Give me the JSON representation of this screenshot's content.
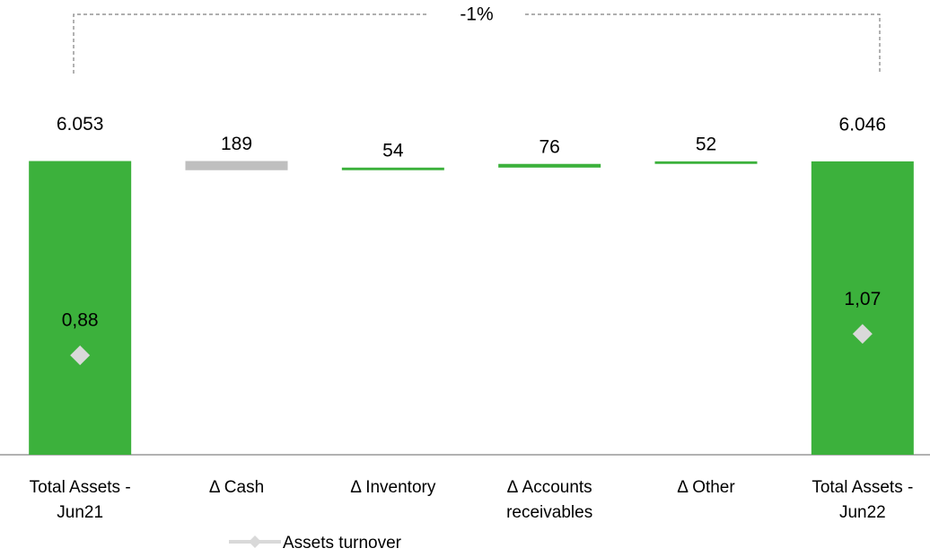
{
  "chart_data": {
    "type": "waterfall",
    "categories": [
      "Total Assets - Jun21",
      "Δ Cash",
      "Δ Inventory",
      "Δ Accounts receivables",
      "Δ  Other",
      "Total Assets - Jun22"
    ],
    "series": [
      {
        "values": [
          6053,
          -189,
          54,
          76,
          52,
          6046
        ],
        "value_labels": [
          "6.053",
          "189",
          "54",
          "76",
          "52",
          "6.046"
        ],
        "color": "#3cb13c",
        "decrease_color": "#bfbfbf"
      },
      {
        "name": "Assets turnover",
        "type": "scatter",
        "axis": "y2",
        "values": [
          0.88,
          null,
          null,
          null,
          null,
          1.07
        ],
        "value_labels": [
          "0,88",
          null,
          null,
          null,
          null,
          "1,07"
        ],
        "color": "#d9d9d9"
      }
    ],
    "annotation": "-1%",
    "ylim": [
      0,
      6100
    ],
    "y2lim": [
      0,
      2.62
    ]
  }
}
